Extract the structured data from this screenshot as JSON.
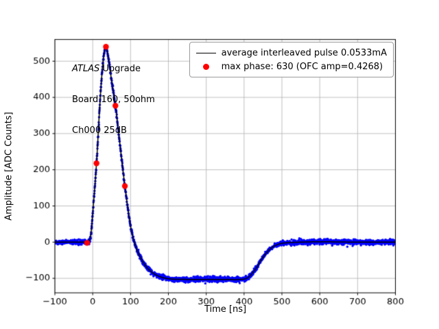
{
  "figure": {
    "xlabel": "Time [ns]",
    "ylabel": "Amplitude [ADC Counts]",
    "colors": {
      "pulse_scatter": "#0000ff",
      "average_line": "#000000",
      "max_phase_dots": "#ff0000",
      "grid": "#b0b0b0",
      "spine": "#000000"
    }
  },
  "annotation": {
    "line1_italic": "ATLAS",
    "line1_rest": " Upgrade",
    "line2": "Board 160, 50ohm",
    "line3": "Ch000 25dB"
  },
  "legend": {
    "entries": [
      {
        "marker": "black-line",
        "label": "average interleaved pulse 0.0533mA"
      },
      {
        "marker": "red-dot",
        "label": "max phase: 630 (OFC amp=0.4268)"
      }
    ]
  },
  "chart_data": {
    "type": "scatter",
    "title": "",
    "xlabel": "Time [ns]",
    "ylabel": "Amplitude [ADC Counts]",
    "xlim": [
      -100,
      800
    ],
    "ylim": [
      -140,
      560
    ],
    "xticks": [
      -100,
      0,
      100,
      200,
      300,
      400,
      500,
      600,
      700,
      800
    ],
    "yticks": [
      -100,
      0,
      100,
      200,
      300,
      400,
      500
    ],
    "grid": true,
    "legend_position": "upper right",
    "series": [
      {
        "name": "average interleaved pulse 0.0533mA",
        "style": "line+noisy-scatter",
        "anchors": [
          [
            -100,
            0
          ],
          [
            -40,
            0
          ],
          [
            -20,
            0
          ],
          [
            -15,
            -2
          ],
          [
            -10,
            2
          ],
          [
            -5,
            20
          ],
          [
            0,
            80
          ],
          [
            10,
            218
          ],
          [
            20,
            400
          ],
          [
            28,
            505
          ],
          [
            35,
            540
          ],
          [
            42,
            505
          ],
          [
            50,
            445
          ],
          [
            60,
            377
          ],
          [
            72,
            270
          ],
          [
            85,
            155
          ],
          [
            100,
            45
          ],
          [
            110,
            0
          ],
          [
            125,
            -40
          ],
          [
            145,
            -72
          ],
          [
            170,
            -92
          ],
          [
            200,
            -101
          ],
          [
            250,
            -103
          ],
          [
            300,
            -103
          ],
          [
            350,
            -103
          ],
          [
            390,
            -103
          ],
          [
            410,
            -98
          ],
          [
            430,
            -75
          ],
          [
            450,
            -42
          ],
          [
            470,
            -18
          ],
          [
            490,
            -6
          ],
          [
            510,
            -2
          ],
          [
            550,
            0
          ],
          [
            600,
            1
          ],
          [
            700,
            0
          ],
          [
            800,
            0
          ]
        ],
        "scatter_noise_sigma": 3.5,
        "scatter_step_ns": 0.4
      },
      {
        "name": "max phase: 630 (OFC amp=0.4268)",
        "style": "red-dots",
        "points": [
          [
            -15,
            -2
          ],
          [
            10,
            218
          ],
          [
            35,
            540
          ],
          [
            60,
            377
          ],
          [
            85,
            155
          ]
        ]
      }
    ]
  }
}
